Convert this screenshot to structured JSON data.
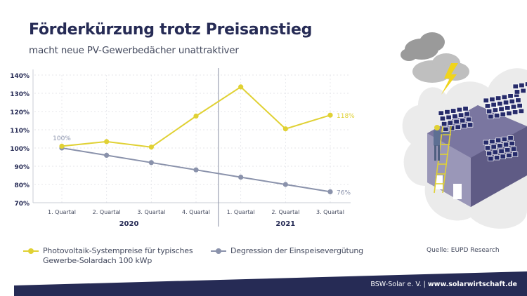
{
  "header": {
    "title": "Förderkürzung trotz Preisanstieg",
    "subtitle": "macht neue PV-Gewerbedächer unattraktiver"
  },
  "chart_data": {
    "type": "line",
    "title": "Förderkürzung trotz Preisanstieg",
    "subtitle": "macht neue PV-Gewerbedächer unattraktiver",
    "xlabel": "",
    "ylabel": "",
    "ylim": [
      70,
      140
    ],
    "yticks": [
      70,
      80,
      90,
      100,
      110,
      120,
      130,
      140
    ],
    "ytick_labels": [
      "70%",
      "80%",
      "90%",
      "100%",
      "110%",
      "120%",
      "130%",
      "140%"
    ],
    "grid": true,
    "categories": [
      "1. Quartal",
      "2. Quartal",
      "3. Quartal",
      "4. Quartal",
      "1. Quartal",
      "2. Quartal",
      "3. Quartal"
    ],
    "groups": [
      {
        "label": "2020",
        "count": 4
      },
      {
        "label": "2021",
        "count": 3
      }
    ],
    "series": [
      {
        "name": "Photovoltaik-Systempreise für typisches Gewerbe-Solardach 100 kWp",
        "legend_line1": "Photovoltaik-Systempreise für typisches",
        "legend_line2": "Gewerbe-Solardach 100 kWp",
        "color": "#e0d134",
        "values": [
          101,
          103.5,
          100.5,
          117.5,
          133.5,
          110.5,
          118
        ],
        "end_label": "118%"
      },
      {
        "name": "Degression der Einspeisevergütung",
        "color": "#8a92ab",
        "values": [
          100,
          96,
          92,
          88,
          84,
          80,
          76
        ],
        "start_label": "100%",
        "end_label": "76%"
      }
    ],
    "legend_position": "bottom"
  },
  "source": "Quelle: EUPD Research",
  "footer": {
    "org": "BSW-Solar e. V. | ",
    "url": "www.solarwirtschaft.de"
  },
  "colors": {
    "navy": "#262b55",
    "yellow": "#e0d134",
    "grey_blue": "#8a92ab",
    "axis": "#c9ccd6"
  },
  "illustration": {
    "icons": [
      "cloud-icon",
      "lightning-icon",
      "solar-roof-icon",
      "worker-icon",
      "ladder-icon"
    ]
  }
}
